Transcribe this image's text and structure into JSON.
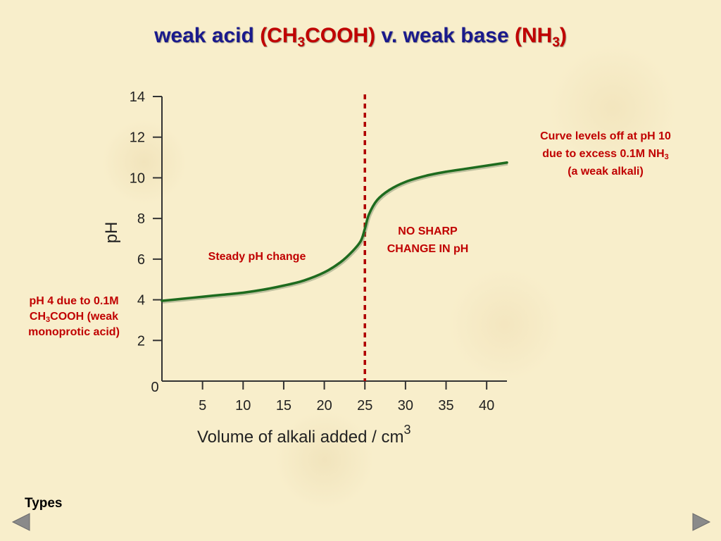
{
  "title": {
    "part1": "weak acid ",
    "part2": "(CH",
    "part2_sub": "3",
    "part2_end": "COOH)",
    "part3": " v. weak base ",
    "part4": "(NH",
    "part4_sub": "3",
    "part4_end": ")"
  },
  "annotations": {
    "levels_off_line1": "Curve levels off at pH 10",
    "levels_off_line2": "due to excess 0.1M NH",
    "levels_off_line2_sub": "3",
    "levels_off_line3": "(a weak alkali)",
    "start_line1": "pH 4 due to 0.1M",
    "start_line2": "CH",
    "start_line2_sub": "3",
    "start_line2_end": "COOH (weak",
    "start_line3": "monoprotic acid)",
    "steady": "Steady pH change",
    "no_sharp_line1": "NO SHARP",
    "no_sharp_line2": "CHANGE IN pH"
  },
  "footer": {
    "types_link": "Types",
    "prev_icon": "triangle-left-icon",
    "next_icon": "triangle-right-icon"
  },
  "colors": {
    "title_blue": "#1a1a8c",
    "accent_red": "#c00000",
    "curve_green": "#1e6b1e",
    "equivalence_line": "#b00000",
    "nav_gray": "#8a8a8a"
  },
  "chart_data": {
    "type": "line",
    "xlabel": "Volume of alkali added / cm",
    "xlabel_superscript": "3",
    "ylabel": "pH",
    "xlim": [
      0,
      42.5
    ],
    "ylim": [
      0,
      14
    ],
    "x_ticks": [
      5,
      10,
      15,
      20,
      25,
      30,
      35,
      40
    ],
    "x_tick_labels": [
      "5",
      "10",
      "15",
      "20",
      "25",
      "30",
      "35",
      "40"
    ],
    "y_ticks": [
      2,
      4,
      6,
      8,
      10,
      12,
      14
    ],
    "y_tick_labels": [
      "2",
      "4",
      "6",
      "8",
      "10",
      "12",
      "14"
    ],
    "origin_label": "0",
    "grid": false,
    "equivalence_x": 25,
    "series": [
      {
        "x": [
          0,
          2.5,
          5,
          7.5,
          10,
          12.5,
          15,
          17.5,
          20,
          22,
          23.5,
          24.5,
          25,
          25.5,
          26.5,
          28,
          30,
          32.5,
          35,
          37.5,
          40,
          42.5
        ],
        "y": [
          3.95,
          4.05,
          4.15,
          4.25,
          4.35,
          4.5,
          4.7,
          4.95,
          5.35,
          5.85,
          6.4,
          6.9,
          7.5,
          8.2,
          8.9,
          9.4,
          9.8,
          10.1,
          10.3,
          10.45,
          10.6,
          10.75
        ]
      }
    ]
  }
}
